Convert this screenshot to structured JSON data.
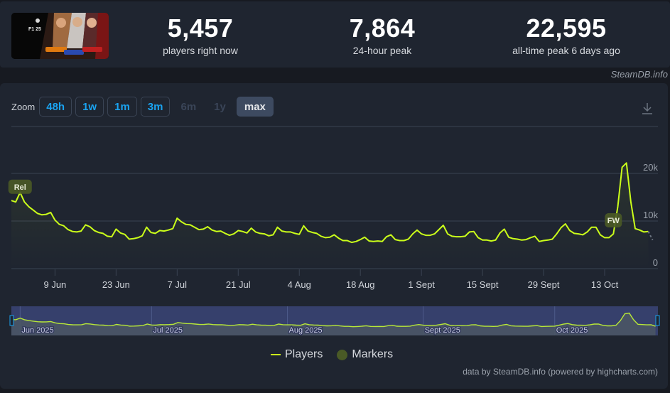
{
  "header": {
    "game_thumbnail_alt": "F1 25 game banner",
    "stats": [
      {
        "value": "5,457",
        "label": "players right now"
      },
      {
        "value": "7,864",
        "label": "24-hour peak"
      },
      {
        "value": "22,595",
        "label": "all-time peak 6 days ago"
      }
    ],
    "credit": "SteamDB.info"
  },
  "toolbar": {
    "zoom_label": "Zoom",
    "zoom_buttons": [
      {
        "label": "48h",
        "state": "enabled"
      },
      {
        "label": "1w",
        "state": "enabled"
      },
      {
        "label": "1m",
        "state": "enabled"
      },
      {
        "label": "3m",
        "state": "enabled"
      },
      {
        "label": "6m",
        "state": "disabled"
      },
      {
        "label": "1y",
        "state": "disabled"
      },
      {
        "label": "max",
        "state": "active"
      }
    ],
    "download_icon": "download-icon"
  },
  "legend": {
    "players_label": "Players",
    "markers_label": "Markers"
  },
  "footer": {
    "credit": "data by SteamDB.info (powered by highcharts.com)"
  },
  "colors": {
    "line": "#cbff1a",
    "marker": "#4a5a26",
    "panel_bg": "#1f2530",
    "page_bg": "#171a21",
    "zoom_button_text": "#1aa3f0",
    "navigator_bg": "#343d6e",
    "grid": "#3a4352"
  },
  "chart_data": {
    "type": "line",
    "title": "",
    "xlabel": "",
    "ylabel": "",
    "ylim": [
      0,
      22000
    ],
    "y_ticks": [
      "0",
      "10k",
      "20k"
    ],
    "y_tick_values": [
      0,
      10000,
      20000
    ],
    "x_tick_labels": [
      "9 Jun",
      "23 Jun",
      "7 Jul",
      "21 Jul",
      "4 Aug",
      "18 Aug",
      "1 Sept",
      "15 Sept",
      "29 Sept",
      "13 Oct"
    ],
    "grid": true,
    "legend_position": "bottom",
    "markers": [
      {
        "label": "Rel",
        "date": "2025-06-01"
      },
      {
        "label": "FW",
        "date": "2025-10-15"
      }
    ],
    "navigator_labels": [
      "Jun 2025",
      "Jul 2025",
      "Aug 2025",
      "Sept 2025",
      "Oct 2025"
    ],
    "series": [
      {
        "name": "Players",
        "x": [
          "2025-05-30",
          "2025-05-31",
          "2025-06-01",
          "2025-06-02",
          "2025-06-03",
          "2025-06-04",
          "2025-06-05",
          "2025-06-06",
          "2025-06-07",
          "2025-06-08",
          "2025-06-09",
          "2025-06-10",
          "2025-06-11",
          "2025-06-12",
          "2025-06-13",
          "2025-06-14",
          "2025-06-15",
          "2025-06-16",
          "2025-06-17",
          "2025-06-18",
          "2025-06-19",
          "2025-06-20",
          "2025-06-21",
          "2025-06-22",
          "2025-06-23",
          "2025-06-24",
          "2025-06-25",
          "2025-06-26",
          "2025-06-27",
          "2025-06-28",
          "2025-06-29",
          "2025-06-30",
          "2025-07-01",
          "2025-07-02",
          "2025-07-03",
          "2025-07-04",
          "2025-07-05",
          "2025-07-06",
          "2025-07-07",
          "2025-07-08",
          "2025-07-09",
          "2025-07-10",
          "2025-07-11",
          "2025-07-12",
          "2025-07-13",
          "2025-07-14",
          "2025-07-15",
          "2025-07-16",
          "2025-07-17",
          "2025-07-18",
          "2025-07-19",
          "2025-07-20",
          "2025-07-21",
          "2025-07-22",
          "2025-07-23",
          "2025-07-24",
          "2025-07-25",
          "2025-07-26",
          "2025-07-27",
          "2025-07-28",
          "2025-07-29",
          "2025-07-30",
          "2025-07-31",
          "2025-08-01",
          "2025-08-02",
          "2025-08-03",
          "2025-08-04",
          "2025-08-05",
          "2025-08-06",
          "2025-08-07",
          "2025-08-08",
          "2025-08-09",
          "2025-08-10",
          "2025-08-11",
          "2025-08-12",
          "2025-08-13",
          "2025-08-14",
          "2025-08-15",
          "2025-08-16",
          "2025-08-17",
          "2025-08-18",
          "2025-08-19",
          "2025-08-20",
          "2025-08-21",
          "2025-08-22",
          "2025-08-23",
          "2025-08-24",
          "2025-08-25",
          "2025-08-26",
          "2025-08-27",
          "2025-08-28",
          "2025-08-29",
          "2025-08-30",
          "2025-08-31",
          "2025-09-01",
          "2025-09-02",
          "2025-09-03",
          "2025-09-04",
          "2025-09-05",
          "2025-09-06",
          "2025-09-07",
          "2025-09-08",
          "2025-09-09",
          "2025-09-10",
          "2025-09-11",
          "2025-09-12",
          "2025-09-13",
          "2025-09-14",
          "2025-09-15",
          "2025-09-16",
          "2025-09-17",
          "2025-09-18",
          "2025-09-19",
          "2025-09-20",
          "2025-09-21",
          "2025-09-22",
          "2025-09-23",
          "2025-09-24",
          "2025-09-25",
          "2025-09-26",
          "2025-09-27",
          "2025-09-28",
          "2025-09-29",
          "2025-09-30",
          "2025-10-01",
          "2025-10-02",
          "2025-10-03",
          "2025-10-04",
          "2025-10-05",
          "2025-10-06",
          "2025-10-07",
          "2025-10-08",
          "2025-10-09",
          "2025-10-10",
          "2025-10-11",
          "2025-10-12",
          "2025-10-13",
          "2025-10-14",
          "2025-10-15",
          "2025-10-16",
          "2025-10-17",
          "2025-10-18",
          "2025-10-19",
          "2025-10-20",
          "2025-10-21",
          "2025-10-22",
          "2025-10-23",
          "2025-10-24"
        ],
        "values": [
          14300,
          14000,
          16000,
          14000,
          13000,
          12300,
          11600,
          11300,
          11400,
          11800,
          10200,
          9300,
          9000,
          8200,
          7800,
          7700,
          7900,
          9200,
          8800,
          8000,
          7600,
          7400,
          6800,
          6700,
          8300,
          7500,
          7200,
          6200,
          6300,
          6500,
          6900,
          8700,
          7600,
          7400,
          8000,
          7900,
          8100,
          8400,
          10600,
          9800,
          9300,
          9200,
          8700,
          8200,
          8300,
          8800,
          8100,
          7800,
          7900,
          7400,
          7000,
          7300,
          8000,
          7800,
          7500,
          8500,
          7700,
          7400,
          7300,
          6900,
          7100,
          8700,
          7900,
          7700,
          7700,
          7400,
          7200,
          9000,
          7900,
          7600,
          7400,
          6800,
          6500,
          6600,
          7100,
          6400,
          5900,
          5900,
          5500,
          5700,
          6100,
          6600,
          5800,
          5700,
          5800,
          5700,
          6700,
          7100,
          6100,
          5900,
          5900,
          6200,
          7300,
          8100,
          7300,
          7000,
          7000,
          7300,
          8200,
          9100,
          7300,
          6800,
          6700,
          6700,
          6800,
          7700,
          7800,
          6500,
          6000,
          6000,
          5800,
          6000,
          7500,
          8300,
          6600,
          6300,
          6200,
          6000,
          6100,
          6500,
          6800,
          5700,
          5900,
          6000,
          6200,
          7300,
          8600,
          9400,
          8000,
          7400,
          7300,
          7100,
          7700,
          8700,
          8700,
          7100,
          6500,
          6500,
          7300,
          13000,
          21300,
          22200,
          14000,
          8400,
          8100,
          7700,
          7800,
          6000
        ]
      }
    ]
  }
}
